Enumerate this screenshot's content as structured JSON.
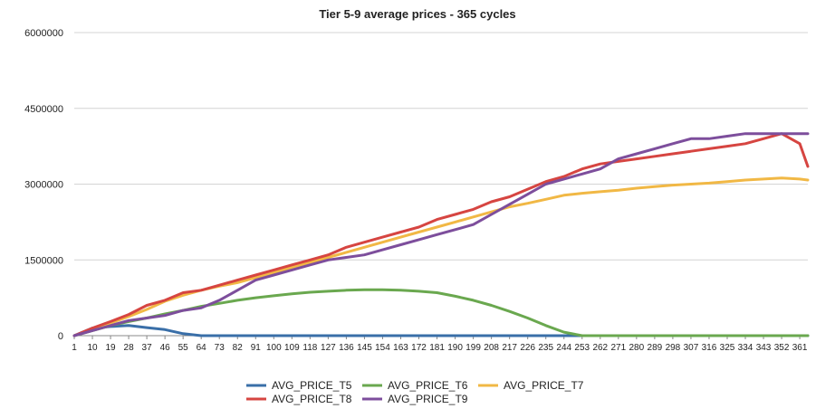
{
  "chart_data": {
    "type": "line",
    "title": "Tier 5-9 average prices - 365 cycles",
    "xlabel": "",
    "ylabel": "",
    "ylim": [
      0,
      6000000
    ],
    "yticks": [
      0,
      1500000,
      3000000,
      4500000,
      6000000
    ],
    "ytick_labels": [
      "0",
      "1500000",
      "3000000",
      "4500000",
      "6000000"
    ],
    "xlim": [
      1,
      365
    ],
    "xticks": [
      1,
      10,
      19,
      28,
      37,
      46,
      55,
      64,
      73,
      82,
      91,
      100,
      109,
      118,
      127,
      136,
      145,
      154,
      163,
      172,
      181,
      190,
      199,
      208,
      217,
      226,
      235,
      244,
      253,
      262,
      271,
      280,
      289,
      298,
      307,
      316,
      325,
      334,
      343,
      352,
      361
    ],
    "grid": true,
    "legend_position": "bottom",
    "series": [
      {
        "name": "AVG_PRICE_T5",
        "color": "#3a6fa8",
        "x": [
          1,
          10,
          19,
          28,
          37,
          46,
          55,
          64,
          73,
          82,
          91,
          100,
          109,
          118,
          127,
          136,
          145,
          154,
          163,
          172,
          181,
          190,
          199,
          208,
          217,
          226,
          235,
          244,
          253,
          262,
          271,
          280,
          289,
          298,
          307,
          316,
          325,
          334,
          343,
          352,
          361,
          365
        ],
        "values": [
          0,
          150000,
          180000,
          200000,
          160000,
          120000,
          40000,
          0,
          0,
          0,
          0,
          0,
          0,
          0,
          0,
          0,
          0,
          0,
          0,
          0,
          0,
          0,
          0,
          0,
          0,
          0,
          0,
          0,
          0,
          0,
          0,
          0,
          0,
          0,
          0,
          0,
          0,
          0,
          0,
          0,
          0,
          0
        ]
      },
      {
        "name": "AVG_PRICE_T6",
        "color": "#6aa84f",
        "x": [
          1,
          10,
          19,
          28,
          37,
          46,
          55,
          64,
          73,
          82,
          91,
          100,
          109,
          118,
          127,
          136,
          145,
          154,
          163,
          172,
          181,
          190,
          199,
          208,
          217,
          226,
          235,
          244,
          253,
          262,
          271,
          280,
          289,
          298,
          307,
          316,
          325,
          334,
          343,
          352,
          361,
          365
        ],
        "values": [
          0,
          100000,
          200000,
          280000,
          350000,
          430000,
          500000,
          580000,
          640000,
          700000,
          750000,
          790000,
          830000,
          860000,
          880000,
          900000,
          910000,
          910000,
          900000,
          880000,
          850000,
          780000,
          700000,
          600000,
          480000,
          350000,
          200000,
          70000,
          0,
          0,
          0,
          0,
          0,
          0,
          0,
          0,
          0,
          0,
          0,
          0,
          0,
          0
        ]
      },
      {
        "name": "AVG_PRICE_T7",
        "color": "#f1b845",
        "x": [
          1,
          10,
          19,
          28,
          37,
          46,
          55,
          64,
          73,
          82,
          91,
          100,
          109,
          118,
          127,
          136,
          145,
          154,
          163,
          172,
          181,
          190,
          199,
          208,
          217,
          226,
          235,
          244,
          253,
          262,
          271,
          280,
          289,
          298,
          307,
          316,
          325,
          334,
          343,
          352,
          361,
          365
        ],
        "values": [
          0,
          120000,
          250000,
          380000,
          520000,
          680000,
          800000,
          900000,
          980000,
          1050000,
          1150000,
          1250000,
          1350000,
          1450000,
          1550000,
          1650000,
          1750000,
          1850000,
          1950000,
          2050000,
          2150000,
          2250000,
          2350000,
          2450000,
          2550000,
          2620000,
          2700000,
          2780000,
          2820000,
          2850000,
          2880000,
          2920000,
          2950000,
          2980000,
          3000000,
          3020000,
          3050000,
          3080000,
          3100000,
          3120000,
          3100000,
          3080000
        ]
      },
      {
        "name": "AVG_PRICE_T8",
        "color": "#d64541",
        "x": [
          1,
          10,
          19,
          28,
          37,
          46,
          55,
          64,
          73,
          82,
          91,
          100,
          109,
          118,
          127,
          136,
          145,
          154,
          163,
          172,
          181,
          190,
          199,
          208,
          217,
          226,
          235,
          244,
          253,
          262,
          271,
          280,
          289,
          298,
          307,
          316,
          325,
          334,
          343,
          352,
          361,
          365
        ],
        "values": [
          0,
          150000,
          280000,
          420000,
          600000,
          700000,
          850000,
          900000,
          1000000,
          1100000,
          1200000,
          1300000,
          1400000,
          1500000,
          1600000,
          1750000,
          1850000,
          1950000,
          2050000,
          2150000,
          2300000,
          2400000,
          2500000,
          2650000,
          2750000,
          2900000,
          3050000,
          3150000,
          3300000,
          3400000,
          3450000,
          3500000,
          3550000,
          3600000,
          3650000,
          3700000,
          3750000,
          3800000,
          3900000,
          4000000,
          3800000,
          3350000
        ]
      },
      {
        "name": "AVG_PRICE_T9",
        "color": "#7d4e9c",
        "x": [
          1,
          10,
          19,
          28,
          37,
          46,
          55,
          64,
          73,
          82,
          91,
          100,
          109,
          118,
          127,
          136,
          145,
          154,
          163,
          172,
          181,
          190,
          199,
          208,
          217,
          226,
          235,
          244,
          253,
          262,
          271,
          280,
          289,
          298,
          307,
          316,
          325,
          334,
          343,
          352,
          361,
          365
        ],
        "values": [
          0,
          100000,
          200000,
          300000,
          350000,
          400000,
          500000,
          550000,
          700000,
          900000,
          1100000,
          1200000,
          1300000,
          1400000,
          1500000,
          1550000,
          1600000,
          1700000,
          1800000,
          1900000,
          2000000,
          2100000,
          2200000,
          2400000,
          2600000,
          2800000,
          3000000,
          3100000,
          3200000,
          3300000,
          3500000,
          3600000,
          3700000,
          3800000,
          3900000,
          3900000,
          3950000,
          4000000,
          4000000,
          4000000,
          4000000,
          4000000
        ]
      }
    ]
  }
}
